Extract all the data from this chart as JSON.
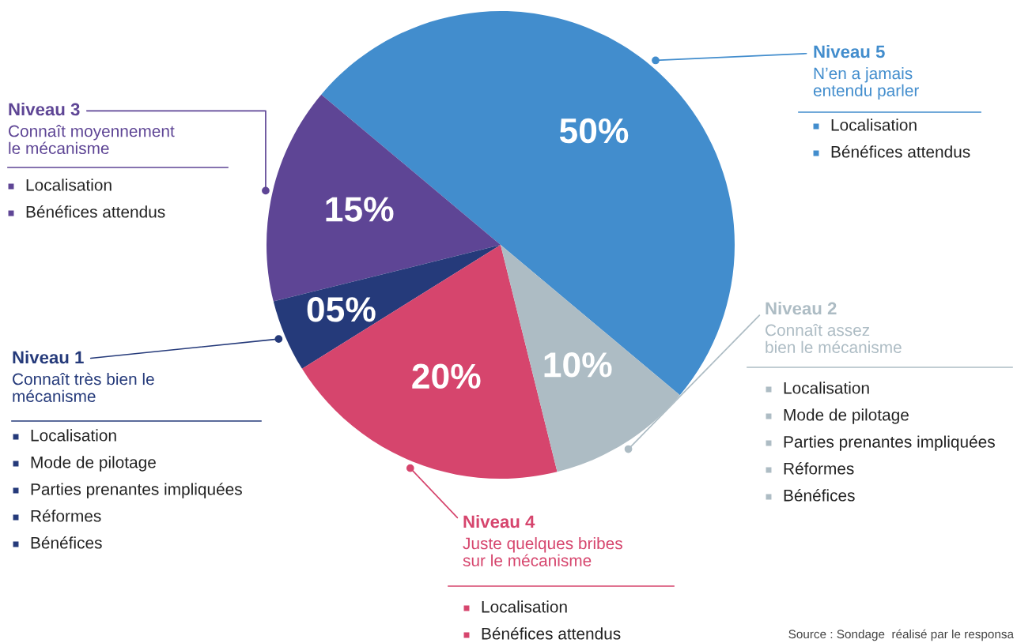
{
  "chart_data": {
    "type": "pie",
    "categories": [
      "Niveau 5",
      "Niveau 3",
      "Niveau 1",
      "Niveau 4",
      "Niveau 2"
    ],
    "values": [
      50,
      15,
      5,
      20,
      10
    ],
    "value_labels": [
      "50%",
      "15%",
      "05%",
      "20%",
      "10%"
    ],
    "colors": [
      "#428dcd",
      "#5e4595",
      "#253a7a",
      "#d6456d",
      "#adbcc4"
    ],
    "annotations": [
      "N’en a jamais\nentendu parler",
      "Connaît moyennement\nle mécanisme",
      "Connaît très bien le\nmécanisme",
      "Juste quelques bribes\nsur le mécanisme",
      "Connaît assez\nbien le mécanisme",
      "Localisation\nBénéfices attendus",
      "Localisation\nBénéfices attendus",
      "Localisation\nMode de pilotage\nParties prenantes impliquées\nRéformes\nBénéfices",
      "Localisation\nBénéfices attendus",
      "Localisation\nMode de pilotage\nParties prenantes impliquées\nRéformes\nBénéfices",
      "Source : Sondage  réalisé par le responsa"
    ]
  }
}
